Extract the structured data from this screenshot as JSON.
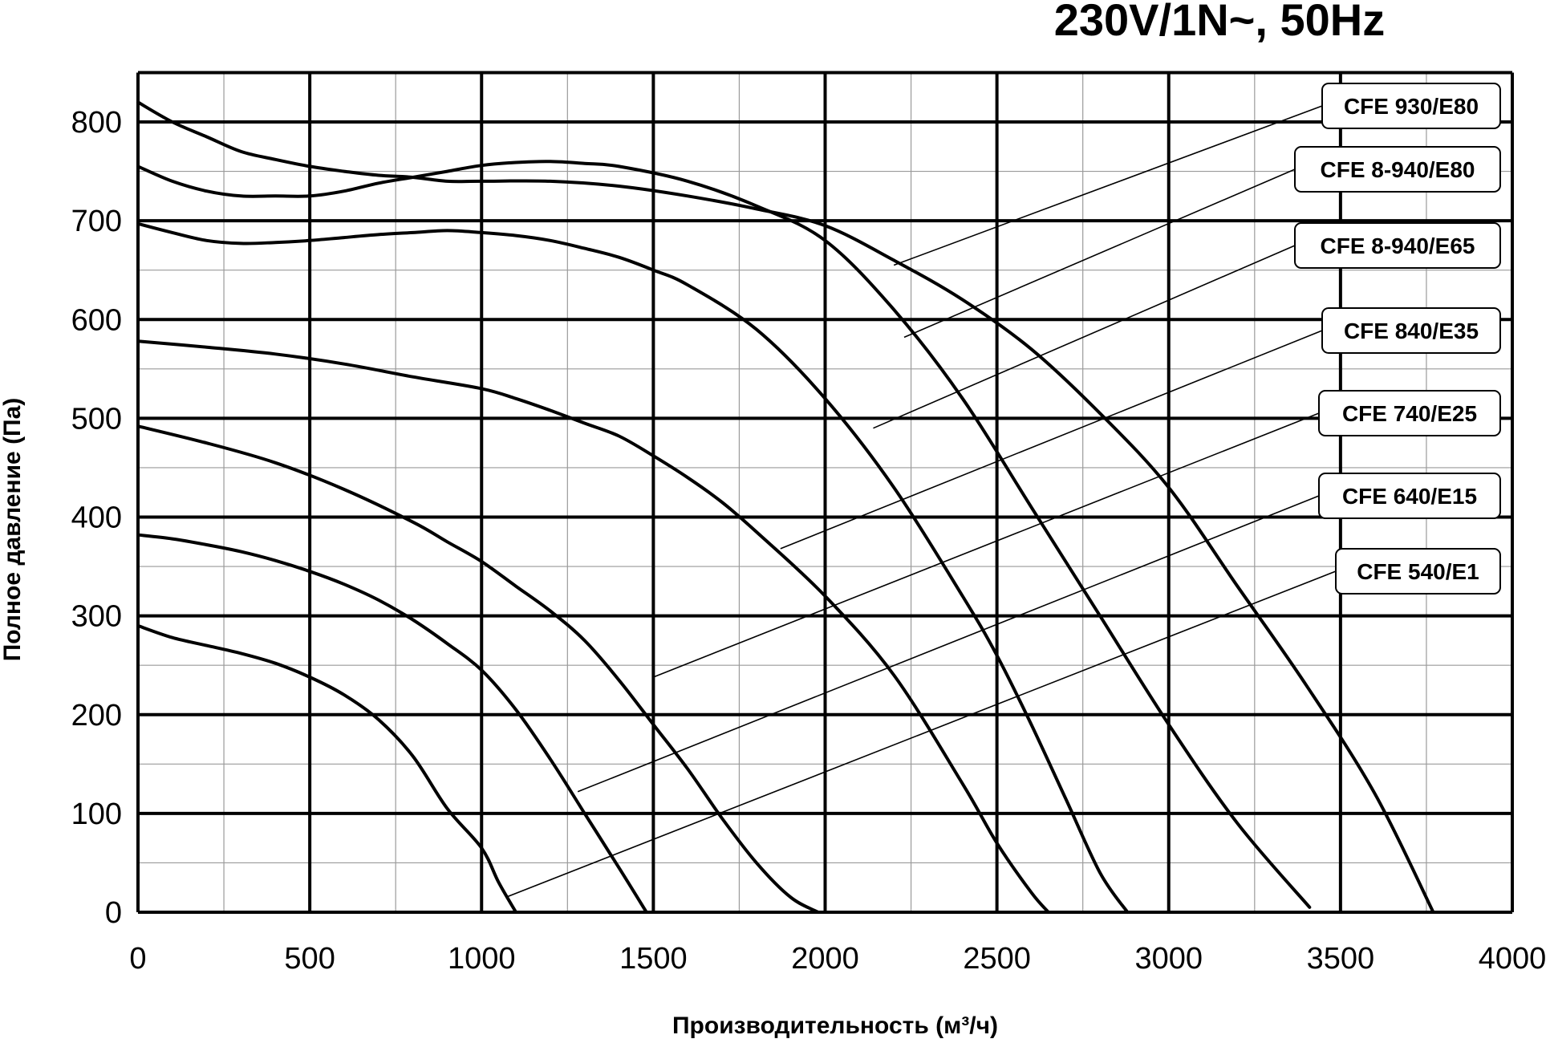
{
  "chart_data": {
    "type": "line",
    "title": "230V/1N~, 50Hz",
    "xlabel": "Производительность (м³/ч)",
    "ylabel": "Полное давление (Па)",
    "xlim": [
      0,
      4000
    ],
    "ylim": [
      0,
      850
    ],
    "x_ticks": [
      "0",
      "500",
      "1000",
      "1500",
      "2000",
      "2500",
      "3000",
      "3500",
      "4000"
    ],
    "y_ticks": [
      "0",
      "100",
      "200",
      "300",
      "400",
      "500",
      "600",
      "700",
      "800"
    ],
    "grid": true,
    "series": [
      {
        "name": "CFE 930/E80",
        "x": [
          0,
          100,
          200,
          300,
          400,
          500,
          600,
          700,
          800,
          900,
          1000,
          1200,
          1400,
          1600,
          1800,
          2000,
          2200,
          2400,
          2600,
          2800,
          3000,
          3200,
          3400,
          3600,
          3770
        ],
        "y": [
          820,
          800,
          785,
          770,
          762,
          755,
          750,
          746,
          744,
          740,
          740,
          740,
          735,
          725,
          712,
          695,
          660,
          620,
          570,
          505,
          430,
          330,
          230,
          120,
          0
        ]
      },
      {
        "name": "CFE 8-940/E80",
        "x": [
          0,
          100,
          200,
          300,
          400,
          500,
          600,
          700,
          800,
          900,
          1000,
          1100,
          1200,
          1300,
          1400,
          1600,
          1800,
          2000,
          2200,
          2400,
          2600,
          2800,
          3000,
          3200,
          3410
        ],
        "y": [
          755,
          740,
          730,
          725,
          725,
          725,
          730,
          738,
          744,
          750,
          756,
          759,
          760,
          758,
          755,
          740,
          715,
          680,
          610,
          520,
          410,
          300,
          190,
          90,
          5
        ]
      },
      {
        "name": "CFE 8-940/E65",
        "x": [
          0,
          100,
          200,
          300,
          400,
          500,
          600,
          700,
          800,
          900,
          1000,
          1100,
          1200,
          1300,
          1400,
          1500,
          1600,
          1800,
          2000,
          2200,
          2400,
          2500,
          2600,
          2700,
          2800,
          2880
        ],
        "y": [
          697,
          688,
          680,
          677,
          678,
          680,
          683,
          686,
          688,
          690,
          688,
          685,
          680,
          672,
          663,
          650,
          635,
          590,
          520,
          430,
          320,
          260,
          190,
          115,
          40,
          0
        ]
      },
      {
        "name": "CFE 840/E35",
        "x": [
          0,
          200,
          400,
          600,
          800,
          1000,
          1100,
          1200,
          1300,
          1400,
          1500,
          1600,
          1700,
          1800,
          2000,
          2200,
          2400,
          2500,
          2600,
          2650
        ],
        "y": [
          578,
          572,
          565,
          555,
          542,
          530,
          520,
          508,
          495,
          482,
          462,
          440,
          415,
          385,
          320,
          240,
          130,
          70,
          20,
          0
        ]
      },
      {
        "name": "CFE 740/E25",
        "x": [
          0,
          200,
          400,
          600,
          800,
          900,
          1000,
          1100,
          1200,
          1300,
          1400,
          1500,
          1600,
          1700,
          1800,
          1900,
          1980
        ],
        "y": [
          492,
          475,
          455,
          428,
          395,
          375,
          355,
          330,
          305,
          275,
          235,
          190,
          145,
          95,
          50,
          15,
          0
        ]
      },
      {
        "name": "CFE 640/E15",
        "x": [
          0,
          100,
          200,
          300,
          400,
          500,
          600,
          700,
          800,
          900,
          1000,
          1100,
          1200,
          1300,
          1400,
          1480
        ],
        "y": [
          382,
          378,
          372,
          365,
          356,
          345,
          332,
          316,
          296,
          272,
          245,
          205,
          155,
          100,
          45,
          0
        ]
      },
      {
        "name": "CFE 540/E1",
        "x": [
          0,
          100,
          200,
          300,
          400,
          500,
          600,
          700,
          800,
          900,
          1000,
          1050,
          1100
        ],
        "y": [
          290,
          278,
          270,
          262,
          252,
          238,
          220,
          195,
          158,
          105,
          65,
          30,
          0
        ]
      }
    ],
    "callouts": [
      {
        "label": "CFE 930/E80",
        "to_x": 2200,
        "to_y": 655
      },
      {
        "label": "CFE 8-940/E80",
        "to_x": 2230,
        "to_y": 582
      },
      {
        "label": "CFE 8-940/E65",
        "to_x": 2140,
        "to_y": 490
      },
      {
        "label": "CFE 840/E35",
        "to_x": 1870,
        "to_y": 368
      },
      {
        "label": "CFE 740/E25",
        "to_x": 1500,
        "to_y": 238
      },
      {
        "label": "CFE 640/E15",
        "to_x": 1280,
        "to_y": 122
      },
      {
        "label": "CFE 540/E1",
        "to_x": 1070,
        "to_y": 15
      }
    ]
  }
}
